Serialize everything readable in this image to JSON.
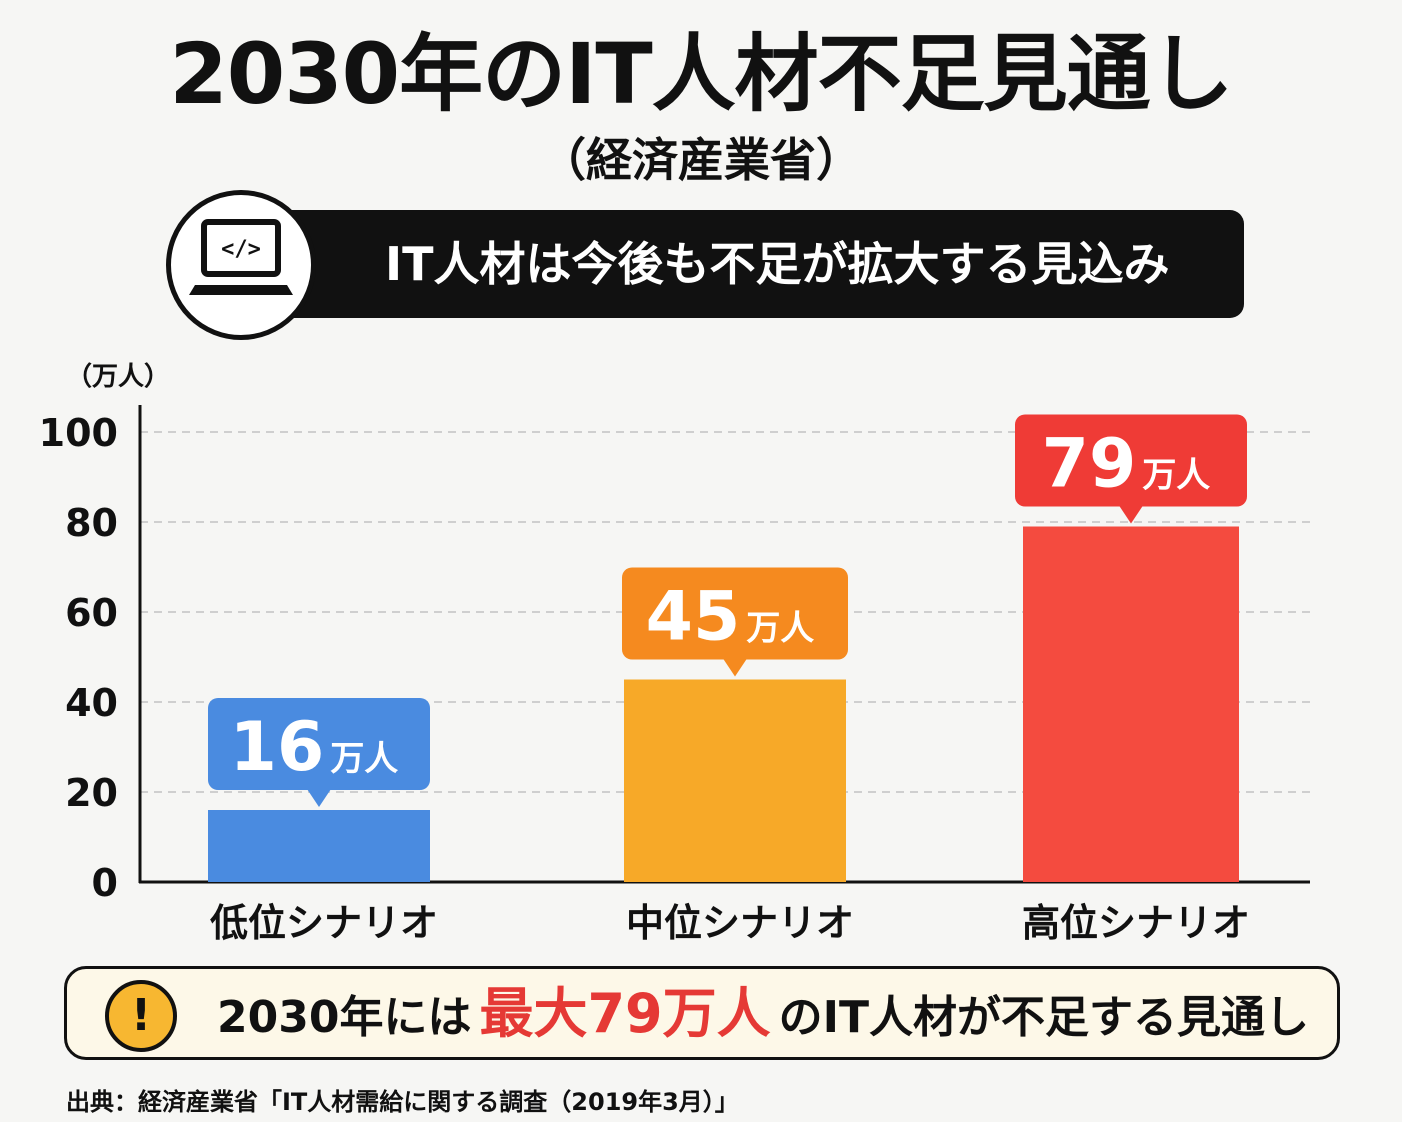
{
  "header": {
    "title": "2030年のIT人材不足見通し",
    "subtitle": "（経済産業省）",
    "banner_text": "IT人材は今後も不足が拡大する見込み",
    "banner_icon": "laptop-code-icon",
    "laptop_code_glyph": "</>"
  },
  "chart_data": {
    "type": "bar",
    "unit_label": "（万人）",
    "categories": [
      "低位シナリオ",
      "中位シナリオ",
      "高位シナリオ"
    ],
    "values": [
      16,
      45,
      79
    ],
    "data_labels": [
      {
        "number": "16",
        "unit": "万人"
      },
      {
        "number": "45",
        "unit": "万人"
      },
      {
        "number": "79",
        "unit": "万人"
      }
    ],
    "ylim": [
      0,
      100
    ],
    "yticks": [
      "0",
      "20",
      "40",
      "60",
      "80",
      "100"
    ],
    "grid": true,
    "bar_colors": [
      "#4a8be0",
      "#f7a928",
      "#f44b3f"
    ],
    "label_colors": [
      "#4a8be0",
      "#f58a1f",
      "#ef3b36"
    ]
  },
  "callout": {
    "icon": "exclamation-icon",
    "icon_glyph": "!",
    "prefix": "2030年には",
    "highlight": "最大79万人",
    "suffix": "のIT人材が不足する見通し"
  },
  "source": "出典：経済産業省「IT人材需給に関する調査（2019年3月）」"
}
